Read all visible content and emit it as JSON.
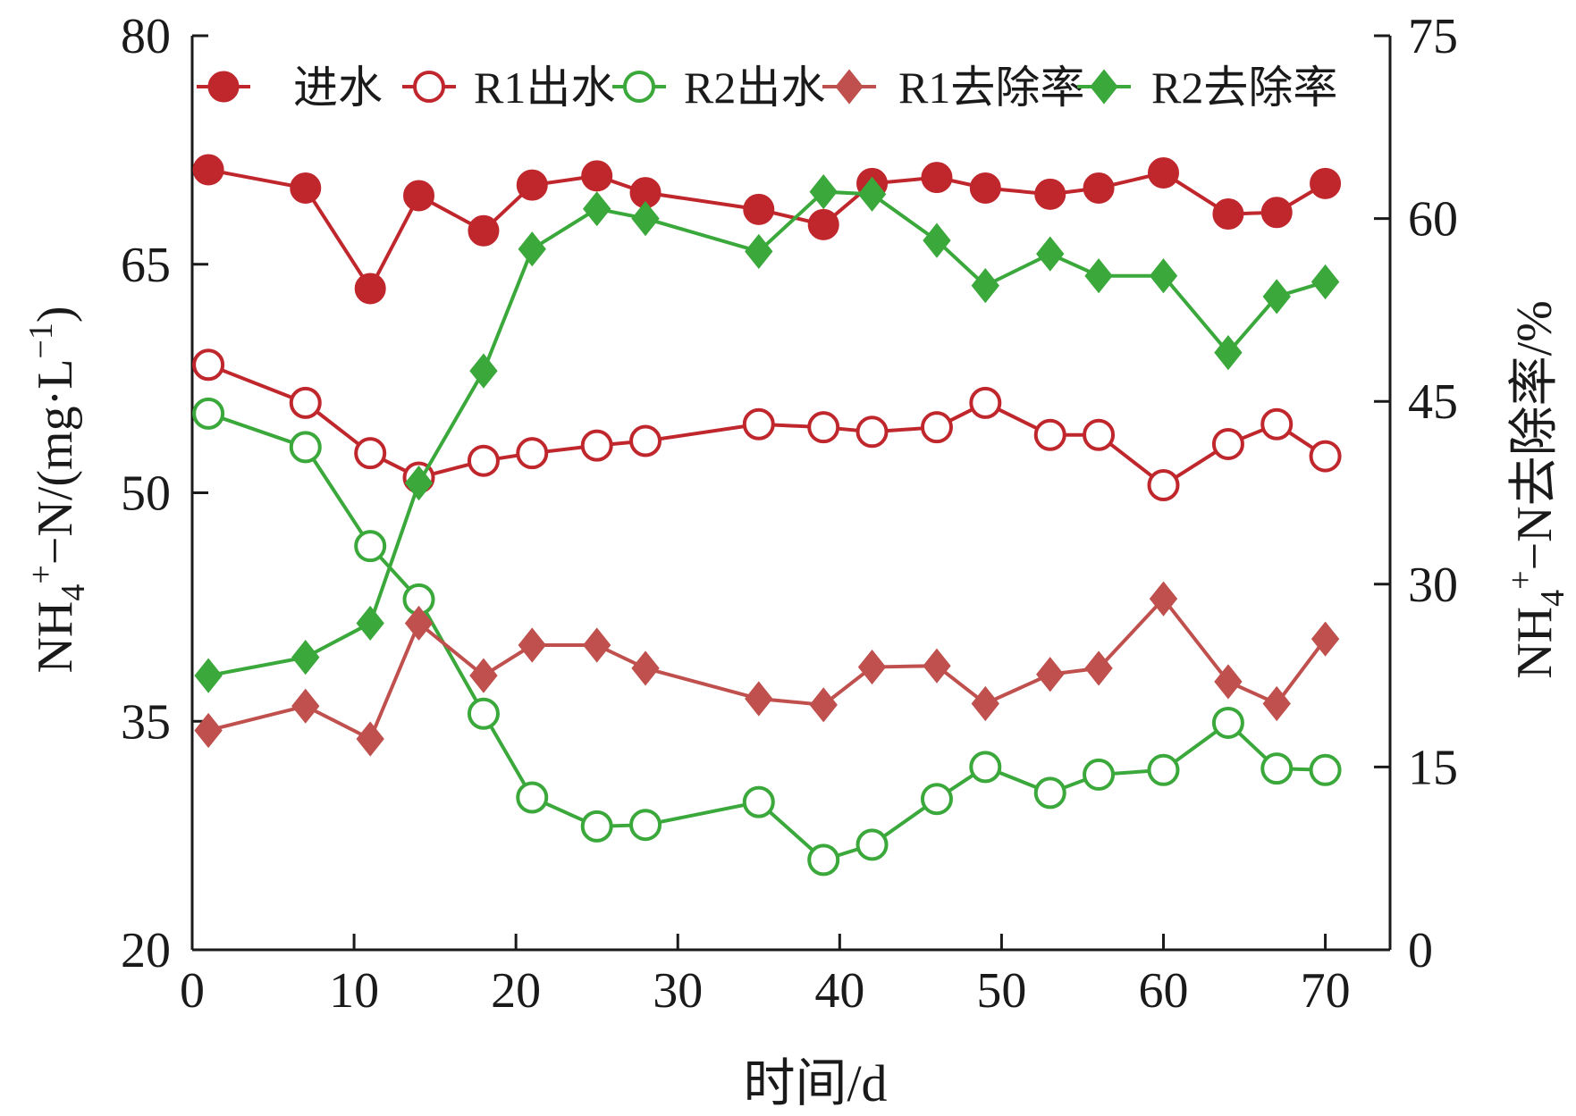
{
  "chart_data": {
    "type": "line",
    "x_label": "时间/d",
    "y_left_label": "NH4+-N/(mg·L-1)",
    "y_right_label": "NH4+-N去除率/%",
    "y_left_label_parts": {
      "pre": "NH",
      "sub": "4",
      "sup": "+",
      "post": "−N/(mg·L",
      "sup2": "−1",
      "end": ")"
    },
    "y_right_label_parts": {
      "pre": "NH",
      "sub": "4",
      "sup": "+",
      "post": "−N去除率/%"
    },
    "x_range": [
      0,
      74
    ],
    "x_ticks": [
      0,
      10,
      20,
      30,
      40,
      50,
      60,
      70
    ],
    "y_left_range": [
      20,
      80
    ],
    "y_left_ticks": [
      20,
      35,
      50,
      65,
      80
    ],
    "y_right_range": [
      0,
      75
    ],
    "y_right_ticks": [
      0,
      15,
      30,
      45,
      60,
      75
    ],
    "grid": false,
    "legend_position": "top",
    "x": [
      1,
      7,
      11,
      14,
      18,
      21,
      25,
      28,
      35,
      39,
      42,
      46,
      49,
      53,
      56,
      60,
      64,
      67,
      70
    ],
    "series": [
      {
        "name": "进水",
        "axis": "left",
        "marker": "circle-filled",
        "color": "#c0272d",
        "values": [
          71.2,
          70.0,
          63.4,
          69.5,
          67.2,
          70.2,
          70.8,
          69.7,
          68.6,
          67.6,
          70.3,
          70.7,
          70.0,
          69.6,
          70.0,
          71.0,
          68.3,
          68.4,
          70.3
        ]
      },
      {
        "name": "R1出水",
        "axis": "left",
        "marker": "circle-open",
        "color": "#c0272d",
        "values": [
          58.4,
          55.9,
          52.6,
          51.0,
          52.1,
          52.6,
          53.1,
          53.4,
          54.5,
          54.3,
          54.0,
          54.3,
          55.9,
          53.8,
          53.8,
          50.5,
          53.2,
          54.5,
          52.4
        ]
      },
      {
        "name": "R2出水",
        "axis": "left",
        "marker": "circle-open",
        "color": "#3aa83a",
        "values": [
          55.2,
          53.0,
          46.5,
          43.0,
          35.5,
          30.0,
          28.1,
          28.2,
          29.7,
          25.9,
          26.9,
          29.9,
          32.0,
          30.3,
          31.5,
          31.8,
          34.9,
          31.9,
          31.8
        ]
      },
      {
        "name": "R1去除率",
        "axis": "right",
        "marker": "diamond-filled",
        "color": "#c0504d",
        "values": [
          18.0,
          20.0,
          17.3,
          26.8,
          22.5,
          25.0,
          25.0,
          23.1,
          20.6,
          20.1,
          23.2,
          23.3,
          20.2,
          22.6,
          23.1,
          28.8,
          22.0,
          20.2,
          25.5
        ]
      },
      {
        "name": "R2去除率",
        "axis": "right",
        "marker": "diamond-filled",
        "color": "#3aa83a",
        "values": [
          22.5,
          24.0,
          26.8,
          38.3,
          47.5,
          57.5,
          60.8,
          60.0,
          57.3,
          62.2,
          62.0,
          58.2,
          54.5,
          57.1,
          55.3,
          55.3,
          49.0,
          53.6,
          54.8
        ]
      }
    ]
  }
}
